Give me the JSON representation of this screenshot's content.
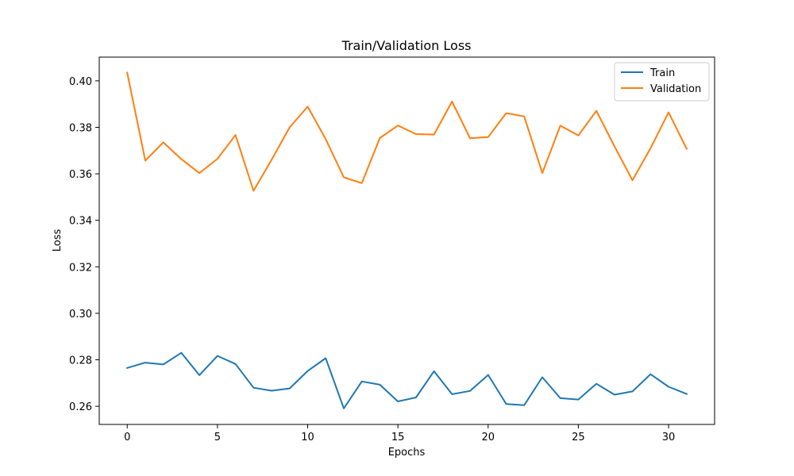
{
  "chart_data": {
    "type": "line",
    "title": "Train/Validation Loss",
    "xlabel": "Epochs",
    "ylabel": "Loss",
    "xlim": [
      -1.55,
      32.55
    ],
    "ylim": [
      0.2522,
      0.4102
    ],
    "xticks": [
      0,
      5,
      10,
      15,
      20,
      25,
      30
    ],
    "yticks": [
      0.26,
      0.28,
      0.3,
      0.32,
      0.34,
      0.36,
      0.38,
      0.4
    ],
    "ytick_labels": [
      "0.26",
      "0.28",
      "0.30",
      "0.32",
      "0.34",
      "0.36",
      "0.38",
      "0.40"
    ],
    "grid": false,
    "legend_position": "top-right",
    "x": [
      0,
      1,
      2,
      3,
      4,
      5,
      6,
      7,
      8,
      9,
      10,
      11,
      12,
      13,
      14,
      15,
      16,
      17,
      18,
      19,
      20,
      21,
      22,
      23,
      24,
      25,
      26,
      27,
      28,
      29,
      30,
      31
    ],
    "series": [
      {
        "name": "Train",
        "color": "#1f77b4",
        "values": [
          0.2765,
          0.2788,
          0.278,
          0.283,
          0.2734,
          0.2817,
          0.2782,
          0.268,
          0.2667,
          0.2677,
          0.2752,
          0.2807,
          0.2591,
          0.2707,
          0.2693,
          0.2621,
          0.2638,
          0.2751,
          0.2652,
          0.2666,
          0.2735,
          0.261,
          0.2605,
          0.2725,
          0.2635,
          0.2629,
          0.2697,
          0.265,
          0.2664,
          0.2738,
          0.2684,
          0.2653
        ]
      },
      {
        "name": "Validation",
        "color": "#ff7f0e",
        "values": [
          0.4035,
          0.3657,
          0.3735,
          0.3663,
          0.3603,
          0.3665,
          0.3767,
          0.3527,
          0.366,
          0.38,
          0.3889,
          0.3749,
          0.3585,
          0.356,
          0.3754,
          0.3808,
          0.3771,
          0.3769,
          0.3911,
          0.3753,
          0.3758,
          0.3861,
          0.3847,
          0.3603,
          0.3807,
          0.3765,
          0.3871,
          0.3718,
          0.3572,
          0.371,
          0.3864,
          0.3708
        ]
      }
    ]
  }
}
